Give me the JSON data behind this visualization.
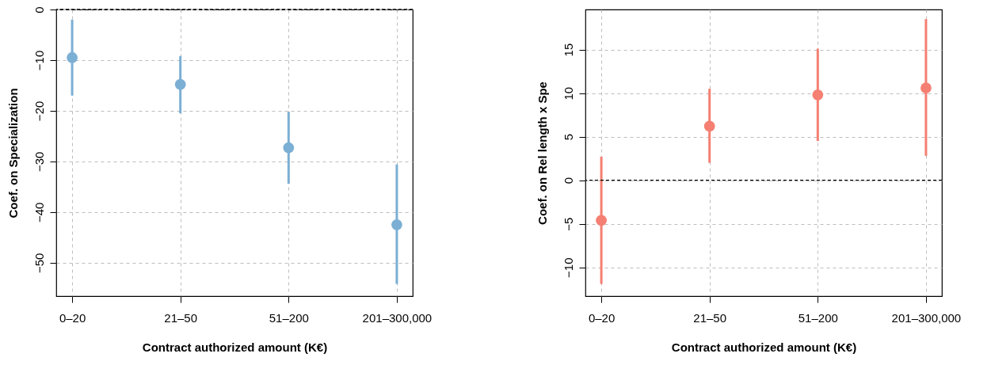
{
  "chart_data": [
    {
      "type": "scatter",
      "xlabel": "Contract authorized amount (K€)",
      "ylabel": "Coef. on Specialization",
      "categories": [
        "0–20",
        "21–50",
        "51–200",
        "201–300,000"
      ],
      "series": [
        {
          "color": "#7bafd4",
          "values": [
            -9.5,
            -14.8,
            -27.3,
            -42.5
          ],
          "errors": [
            [
              -17,
              -2
            ],
            [
              -20.5,
              -9.2
            ],
            [
              -34.4,
              -20.2
            ],
            [
              -54.2,
              -30.6
            ]
          ]
        }
      ],
      "ylim": [
        -56.6,
        0
      ],
      "yticks": [
        -50,
        -40,
        -30,
        -20,
        -10,
        0
      ],
      "grid": true,
      "marker": "circle",
      "ref_lines": [
        {
          "axis": "y",
          "value": 0,
          "color": "#000000",
          "line_style": "dashed"
        }
      ]
    },
    {
      "type": "scatter",
      "xlabel": "Contract authorized amount (K€)",
      "ylabel": "Coef. on Rel length x Spe",
      "categories": [
        "0–20",
        "21–50",
        "51–200",
        "201–300,000"
      ],
      "series": [
        {
          "color": "#f47f72",
          "values": [
            -4.6,
            6.2,
            9.8,
            10.6
          ],
          "errors": [
            [
              -11.9,
              2.7
            ],
            [
              2.0,
              10.5
            ],
            [
              4.5,
              15.1
            ],
            [
              2.8,
              18.5
            ]
          ]
        }
      ],
      "ylim": [
        -13.3,
        19.6
      ],
      "yticks": [
        -10,
        -5,
        0,
        5,
        10,
        15
      ],
      "grid": true,
      "marker": "circle",
      "ref_lines": [
        {
          "axis": "y",
          "value": 0,
          "color": "#000000",
          "line_style": "dashed"
        }
      ]
    }
  ]
}
